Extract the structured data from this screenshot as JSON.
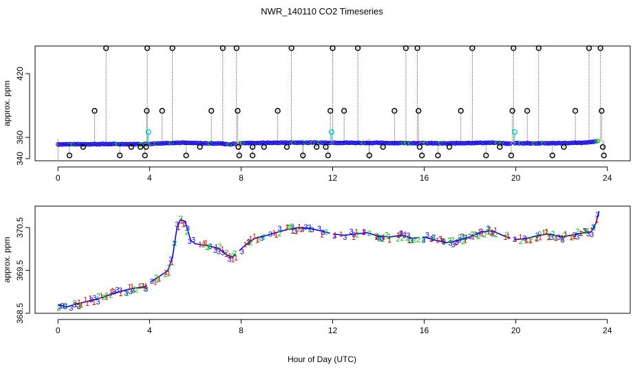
{
  "title": "NWR_140110  CO2 Timeseries",
  "xlabel": "Hour of Day (UTC)",
  "colors": {
    "filtered": "#000000",
    "data": "#0000ff",
    "flag": "#00cccc",
    "ch1": "#dd0000",
    "ch2": "#00bb00",
    "ch3": "#0000ff",
    "baseline": "#ff0000"
  },
  "chart_data": [
    {
      "type": "scatter",
      "panel": "top",
      "ylabel": "approx. ppm",
      "xlim": [
        -1,
        25
      ],
      "ylim": [
        338,
        446
      ],
      "xticks": [
        0,
        4,
        8,
        12,
        16,
        20,
        24
      ],
      "yticks": [
        340,
        360,
        420
      ],
      "baseline": [
        [
          0.0,
          353.5
        ],
        [
          2.0,
          353.7
        ],
        [
          3.8,
          353.7
        ],
        [
          4.0,
          354.0
        ],
        [
          5.0,
          354.9
        ],
        [
          5.4,
          355.0
        ],
        [
          6.5,
          354.3
        ],
        [
          7.0,
          354.4
        ],
        [
          7.5,
          353.5
        ],
        [
          8.0,
          354.6
        ],
        [
          10.0,
          355.1
        ],
        [
          12.0,
          355.0
        ],
        [
          14.0,
          354.8
        ],
        [
          16.0,
          354.6
        ],
        [
          17.0,
          354.3
        ],
        [
          18.0,
          354.8
        ],
        [
          19.0,
          355.0
        ],
        [
          19.8,
          354.0
        ],
        [
          20.0,
          354.6
        ],
        [
          21.0,
          354.4
        ],
        [
          23.0,
          354.9
        ],
        [
          23.4,
          356.0
        ],
        [
          23.6,
          356.5
        ]
      ],
      "gaps": [
        3.95,
        7.85,
        11.95,
        15.85,
        19.85
      ],
      "filtered_points": [
        {
          "x": 0.5,
          "y": 343
        },
        {
          "x": 1.1,
          "y": 351
        },
        {
          "x": 1.6,
          "y": 385
        },
        {
          "x": 2.1,
          "y": 444
        },
        {
          "x": 2.7,
          "y": 343
        },
        {
          "x": 3.2,
          "y": 351
        },
        {
          "x": 3.6,
          "y": 351
        },
        {
          "x": 3.8,
          "y": 343
        },
        {
          "x": 3.85,
          "y": 351
        },
        {
          "x": 3.88,
          "y": 385
        },
        {
          "x": 3.9,
          "y": 444
        },
        {
          "x": 4.55,
          "y": 385
        },
        {
          "x": 5.0,
          "y": 444
        },
        {
          "x": 5.6,
          "y": 343
        },
        {
          "x": 6.2,
          "y": 351
        },
        {
          "x": 6.7,
          "y": 385
        },
        {
          "x": 7.2,
          "y": 444
        },
        {
          "x": 7.8,
          "y": 444
        },
        {
          "x": 7.85,
          "y": 385
        },
        {
          "x": 7.88,
          "y": 351
        },
        {
          "x": 7.92,
          "y": 343
        },
        {
          "x": 8.5,
          "y": 343
        },
        {
          "x": 8.5,
          "y": 351
        },
        {
          "x": 9.0,
          "y": 351
        },
        {
          "x": 9.6,
          "y": 385
        },
        {
          "x": 10.0,
          "y": 351
        },
        {
          "x": 10.2,
          "y": 444
        },
        {
          "x": 10.7,
          "y": 343
        },
        {
          "x": 11.3,
          "y": 351
        },
        {
          "x": 11.7,
          "y": 351
        },
        {
          "x": 11.8,
          "y": 343
        },
        {
          "x": 11.9,
          "y": 385
        },
        {
          "x": 12.0,
          "y": 444
        },
        {
          "x": 12.5,
          "y": 385
        },
        {
          "x": 13.1,
          "y": 444
        },
        {
          "x": 13.6,
          "y": 343
        },
        {
          "x": 14.2,
          "y": 351
        },
        {
          "x": 14.7,
          "y": 385
        },
        {
          "x": 15.2,
          "y": 444
        },
        {
          "x": 15.7,
          "y": 444
        },
        {
          "x": 15.75,
          "y": 385
        },
        {
          "x": 15.8,
          "y": 351
        },
        {
          "x": 15.9,
          "y": 343
        },
        {
          "x": 16.6,
          "y": 343
        },
        {
          "x": 17.1,
          "y": 351
        },
        {
          "x": 17.6,
          "y": 385
        },
        {
          "x": 18.1,
          "y": 444
        },
        {
          "x": 18.7,
          "y": 343
        },
        {
          "x": 19.3,
          "y": 351
        },
        {
          "x": 19.8,
          "y": 343
        },
        {
          "x": 19.85,
          "y": 385
        },
        {
          "x": 19.9,
          "y": 444
        },
        {
          "x": 20.5,
          "y": 385
        },
        {
          "x": 21.0,
          "y": 444
        },
        {
          "x": 21.6,
          "y": 343
        },
        {
          "x": 22.1,
          "y": 351
        },
        {
          "x": 22.6,
          "y": 385
        },
        {
          "x": 23.2,
          "y": 444
        },
        {
          "x": 23.7,
          "y": 444
        },
        {
          "x": 23.75,
          "y": 385
        },
        {
          "x": 23.8,
          "y": 351
        },
        {
          "x": 23.85,
          "y": 343
        }
      ],
      "flagged_points": [
        {
          "x": 3.95,
          "y": 365
        },
        {
          "x": 11.95,
          "y": 365
        },
        {
          "x": 19.95,
          "y": 365
        }
      ]
    },
    {
      "type": "line",
      "panel": "bottom",
      "ylabel": "approx. ppm",
      "xlim": [
        -1,
        25
      ],
      "ylim": [
        368.5,
        371.0
      ],
      "xticks": [
        0,
        4,
        8,
        12,
        16,
        20,
        24
      ],
      "yticks": [
        368.5,
        369.5,
        370.5
      ],
      "yticklabels": [
        "368.5",
        "369.5",
        "370.5"
      ],
      "series": [
        {
          "name": "1"
        },
        {
          "name": "2"
        },
        {
          "name": "3"
        }
      ],
      "trend": [
        [
          0.0,
          368.7
        ],
        [
          0.4,
          368.65
        ],
        [
          0.8,
          368.72
        ],
        [
          1.5,
          368.8
        ],
        [
          2.0,
          368.88
        ],
        [
          2.5,
          368.97
        ],
        [
          3.0,
          369.05
        ],
        [
          3.5,
          369.1
        ],
        [
          3.8,
          369.12
        ],
        [
          4.0,
          369.22
        ],
        [
          4.4,
          369.35
        ],
        [
          4.8,
          369.5
        ],
        [
          5.0,
          369.8
        ],
        [
          5.2,
          370.5
        ],
        [
          5.35,
          370.68
        ],
        [
          5.55,
          370.65
        ],
        [
          5.8,
          370.2
        ],
        [
          6.0,
          370.12
        ],
        [
          6.5,
          370.08
        ],
        [
          7.0,
          370.02
        ],
        [
          7.4,
          369.85
        ],
        [
          7.65,
          369.82
        ],
        [
          7.9,
          369.95
        ],
        [
          8.2,
          370.1
        ],
        [
          8.6,
          370.25
        ],
        [
          9.0,
          370.3
        ],
        [
          9.5,
          370.38
        ],
        [
          10.0,
          370.45
        ],
        [
          10.5,
          370.5
        ],
        [
          11.0,
          370.48
        ],
        [
          11.5,
          370.42
        ],
        [
          12.0,
          370.35
        ],
        [
          12.5,
          370.32
        ],
        [
          13.0,
          370.35
        ],
        [
          13.5,
          370.38
        ],
        [
          14.0,
          370.3
        ],
        [
          14.5,
          370.28
        ],
        [
          15.0,
          370.32
        ],
        [
          15.5,
          370.25
        ],
        [
          16.0,
          370.28
        ],
        [
          16.5,
          370.2
        ],
        [
          17.0,
          370.15
        ],
        [
          17.5,
          370.2
        ],
        [
          18.0,
          370.28
        ],
        [
          18.5,
          370.4
        ],
        [
          19.0,
          370.42
        ],
        [
          19.5,
          370.3
        ],
        [
          20.0,
          370.22
        ],
        [
          20.5,
          370.25
        ],
        [
          21.0,
          370.32
        ],
        [
          21.5,
          370.35
        ],
        [
          22.0,
          370.28
        ],
        [
          22.5,
          370.33
        ],
        [
          23.0,
          370.38
        ],
        [
          23.3,
          370.4
        ],
        [
          23.5,
          370.6
        ],
        [
          23.65,
          370.9
        ]
      ]
    }
  ]
}
